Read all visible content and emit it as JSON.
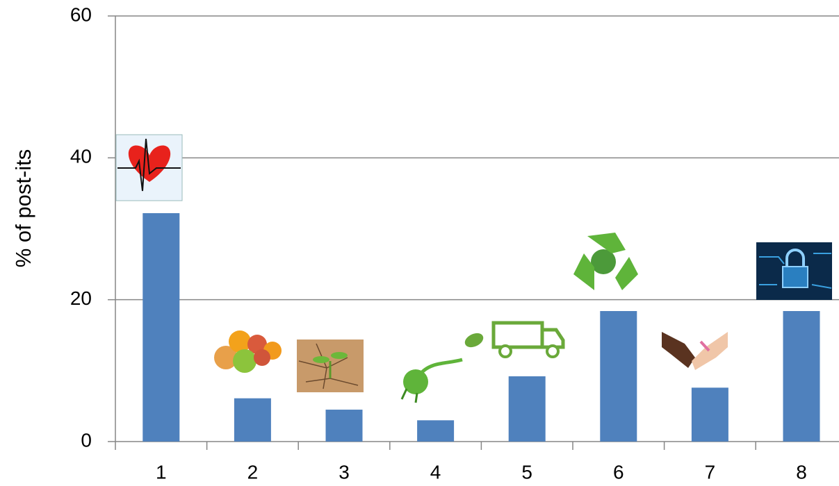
{
  "chart_data": {
    "type": "bar",
    "y_label": "% of post-its",
    "categories": [
      "1",
      "2",
      "3",
      "4",
      "5",
      "6",
      "7",
      "8"
    ],
    "values": [
      32.2,
      6.1,
      4.5,
      3.0,
      9.2,
      18.4,
      7.6,
      18.4
    ],
    "color": "#4f81bd",
    "ylim": [
      0,
      60
    ],
    "yticks": [
      0,
      20,
      40,
      60
    ],
    "grid": true
  }
}
